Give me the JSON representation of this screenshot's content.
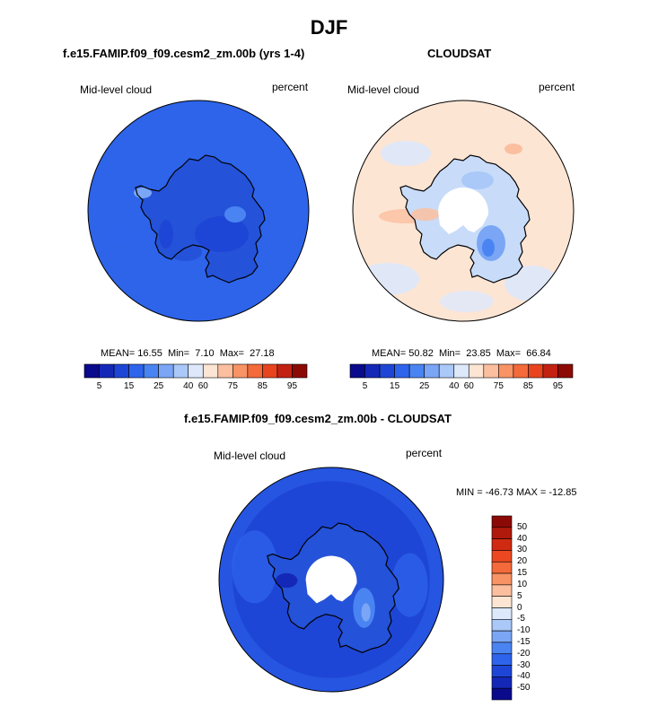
{
  "page": {
    "title": "DJF"
  },
  "chart_data": [
    {
      "type": "heatmap",
      "projection": "south-polar-stereographic",
      "title": "f.e15.FAMIP.f09_f09.cesm2_zm.00b (yrs 1-4)",
      "field_label": "Mid-level cloud",
      "units": "percent",
      "stats": {
        "mean_label": "MEAN=",
        "mean": "16.55",
        "min_label": "Min=",
        "min": "7.10",
        "max_label": "Max=",
        "max": "27.18"
      },
      "colorbar": {
        "colors": [
          "#0a0a8c",
          "#1428b8",
          "#1e46d6",
          "#2e64ec",
          "#4a84f2",
          "#7aa6f5",
          "#aac8f8",
          "#dde8fb",
          "#fde5d4",
          "#fbbf9f",
          "#f89366",
          "#f56a3a",
          "#e8441f",
          "#c32212",
          "#8c0a05"
        ],
        "labels": [
          "5",
          "15",
          "25",
          "40",
          "60",
          "75",
          "85",
          "95"
        ]
      },
      "regions": {
        "ocean": "#2d64ea",
        "land": "#2452d8"
      }
    },
    {
      "type": "heatmap",
      "projection": "south-polar-stereographic",
      "title": "CLOUDSAT",
      "field_label": "Mid-level cloud",
      "units": "percent",
      "stats": {
        "mean_label": "MEAN=",
        "mean": "50.82",
        "min_label": "Min=",
        "min": "23.85",
        "max_label": "Max=",
        "max": "66.84"
      },
      "colorbar": {
        "colors": [
          "#0a0a8c",
          "#1428b8",
          "#1e46d6",
          "#2e64ec",
          "#4a84f2",
          "#7aa6f5",
          "#aac8f8",
          "#dde8fb",
          "#fde5d4",
          "#fbbf9f",
          "#f89366",
          "#f56a3a",
          "#e8441f",
          "#c32212",
          "#8c0a05"
        ],
        "labels": [
          "5",
          "15",
          "25",
          "40",
          "60",
          "75",
          "85",
          "95"
        ]
      },
      "regions": {
        "ocean": "#fde5d4",
        "land": "#c8dcf9",
        "missing": "#ffffff"
      }
    },
    {
      "type": "heatmap",
      "projection": "south-polar-stereographic",
      "title": "f.e15.FAMIP.f09_f09.cesm2_zm.00b - CLOUDSAT",
      "field_label": "Mid-level cloud",
      "units": "percent",
      "minmax_text": "MIN = -46.73 MAX = -12.85",
      "colorbar": {
        "colors": [
          "#8c0a05",
          "#b01a0c",
          "#d02a12",
          "#ec4820",
          "#f56a3a",
          "#f89366",
          "#fbbf9f",
          "#fde5d4",
          "#dde8fb",
          "#aac8f8",
          "#7aa6f5",
          "#4a84f2",
          "#2e64ec",
          "#1e46d6",
          "#1428b8",
          "#0a0a8c"
        ],
        "labels": [
          "50",
          "40",
          "30",
          "20",
          "15",
          "10",
          "5",
          "0",
          "-5",
          "-10",
          "-15",
          "-20",
          "-30",
          "-40",
          "-50"
        ]
      },
      "regions": {
        "ocean": "#1e46d6",
        "land": "#2452d8",
        "missing": "#ffffff"
      }
    }
  ]
}
